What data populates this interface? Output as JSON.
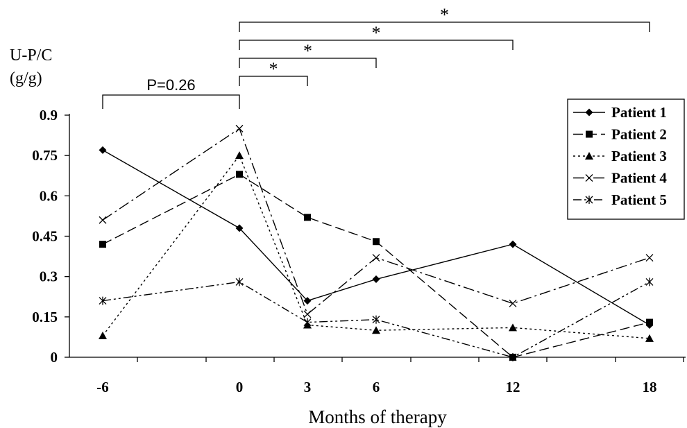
{
  "chart_data": {
    "type": "line",
    "xlabel": "Months of therapy",
    "ylabel": [
      "U-P/C",
      "(g/g)"
    ],
    "x": [
      -6,
      0,
      3,
      6,
      12,
      18
    ],
    "x_tick_labels": [
      "-6",
      "0",
      "3",
      "6",
      "12",
      "18"
    ],
    "ylim": [
      0,
      0.9
    ],
    "y_ticks": [
      0,
      0.15,
      0.3,
      0.45,
      0.6,
      0.75,
      0.9
    ],
    "y_tick_labels": [
      "0",
      "0.15",
      "0.3",
      "0.45",
      "0.6",
      "0.75",
      "0.9"
    ],
    "legend_position": "top-right",
    "grid": false,
    "series": [
      {
        "name": "Patient 1",
        "marker": "diamond",
        "dash": "solid",
        "values": [
          0.77,
          0.48,
          0.21,
          0.29,
          0.42,
          0.12
        ]
      },
      {
        "name": "Patient 2",
        "marker": "square",
        "dash": "long-dash",
        "values": [
          0.42,
          0.68,
          0.52,
          0.43,
          0.0,
          0.13
        ]
      },
      {
        "name": "Patient 3",
        "marker": "triangle",
        "dash": "dotted",
        "values": [
          0.08,
          0.75,
          0.12,
          0.1,
          0.11,
          0.07
        ]
      },
      {
        "name": "Patient 4",
        "marker": "x",
        "dash": "dash-dot",
        "values": [
          0.51,
          0.85,
          0.16,
          0.37,
          0.2,
          0.37
        ]
      },
      {
        "name": "Patient 5",
        "marker": "asterisk",
        "dash": "dash-dot-dot",
        "values": [
          0.21,
          0.28,
          0.13,
          0.14,
          0.0,
          0.28
        ]
      }
    ],
    "annotations": [
      {
        "from": -6,
        "to": 0,
        "label": "P=0.26"
      },
      {
        "from": 0,
        "to": 3,
        "label": "*"
      },
      {
        "from": 0,
        "to": 6,
        "label": "*"
      },
      {
        "from": 0,
        "to": 12,
        "label": "*"
      },
      {
        "from": 0,
        "to": 18,
        "label": "*"
      }
    ]
  }
}
